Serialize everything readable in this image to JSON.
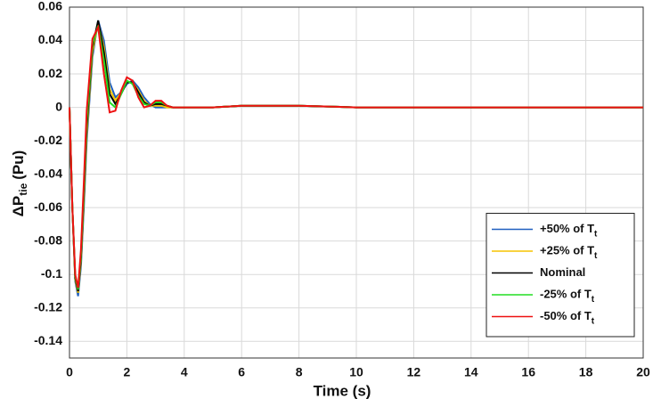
{
  "chart_data": {
    "type": "line",
    "xlabel": "Time (s)",
    "ylabel": [
      "ΔP",
      "tie",
      "(Pu)"
    ],
    "x": [
      0,
      0.1,
      0.2,
      0.3,
      0.4,
      0.5,
      0.6,
      0.8,
      1.0,
      1.2,
      1.4,
      1.6,
      1.8,
      2.0,
      2.2,
      2.4,
      2.6,
      2.8,
      3.0,
      3.2,
      3.4,
      3.6,
      4,
      4.5,
      5,
      6,
      7,
      8,
      9,
      10,
      12,
      15,
      20
    ],
    "series": [
      {
        "name": "+50% of Tt",
        "color": "#1f5fbf",
        "values": [
          0,
          -0.06,
          -0.104,
          -0.113,
          -0.095,
          -0.06,
          -0.02,
          0.03,
          0.052,
          0.04,
          0.015,
          0.006,
          0.009,
          0.014,
          0.016,
          0.012,
          0.006,
          0.002,
          0,
          0,
          0,
          0,
          0,
          0,
          0,
          0.001,
          0.001,
          0.001,
          0.0005,
          0,
          0,
          0,
          0
        ]
      },
      {
        "name": "+25% of Tt",
        "color": "#f5c400",
        "values": [
          0,
          -0.06,
          -0.103,
          -0.111,
          -0.092,
          -0.056,
          -0.016,
          0.033,
          0.051,
          0.036,
          0.011,
          0.004,
          0.009,
          0.015,
          0.015,
          0.01,
          0.004,
          0.001,
          0.001,
          0.001,
          0,
          0,
          0,
          0,
          0,
          0.001,
          0.001,
          0.001,
          0.0005,
          0,
          0,
          0,
          0
        ]
      },
      {
        "name": "Nominal",
        "color": "#000000",
        "values": [
          0,
          -0.06,
          -0.102,
          -0.11,
          -0.09,
          -0.053,
          -0.012,
          0.036,
          0.052,
          0.033,
          0.008,
          0.002,
          0.008,
          0.015,
          0.015,
          0.009,
          0.003,
          0.001,
          0.002,
          0.002,
          0.001,
          0,
          0,
          0,
          0,
          0.001,
          0.001,
          0.001,
          0.0005,
          0,
          0,
          0,
          0
        ]
      },
      {
        "name": "-25% of Tt",
        "color": "#22dd22",
        "values": [
          0,
          -0.06,
          -0.101,
          -0.109,
          -0.088,
          -0.05,
          -0.008,
          0.038,
          0.049,
          0.028,
          0.003,
          0,
          0.008,
          0.016,
          0.014,
          0.007,
          0.002,
          0.001,
          0.003,
          0.003,
          0.001,
          0,
          0,
          0,
          0,
          0.001,
          0.001,
          0.001,
          0.0005,
          0,
          0,
          0,
          0
        ]
      },
      {
        "name": "-50% of Tt",
        "color": "#ee1111",
        "values": [
          0,
          -0.06,
          -0.1,
          -0.108,
          -0.085,
          -0.045,
          -0.002,
          0.041,
          0.048,
          0.02,
          -0.003,
          -0.002,
          0.01,
          0.018,
          0.016,
          0.006,
          0,
          0.001,
          0.004,
          0.004,
          0.001,
          0,
          0,
          0,
          0,
          0.001,
          0.001,
          0.001,
          0.0005,
          0,
          0,
          0,
          0
        ]
      }
    ],
    "xlim": [
      0,
      20
    ],
    "xticks": [
      0,
      2,
      4,
      6,
      8,
      10,
      12,
      14,
      16,
      18,
      20
    ],
    "ylim": [
      -0.15,
      0.06
    ],
    "yticks": [
      -0.14,
      -0.12,
      -0.1,
      -0.08,
      -0.06,
      -0.04,
      -0.02,
      0,
      0.02,
      0.04,
      0.06
    ],
    "grid": true,
    "legend": "lower right"
  }
}
